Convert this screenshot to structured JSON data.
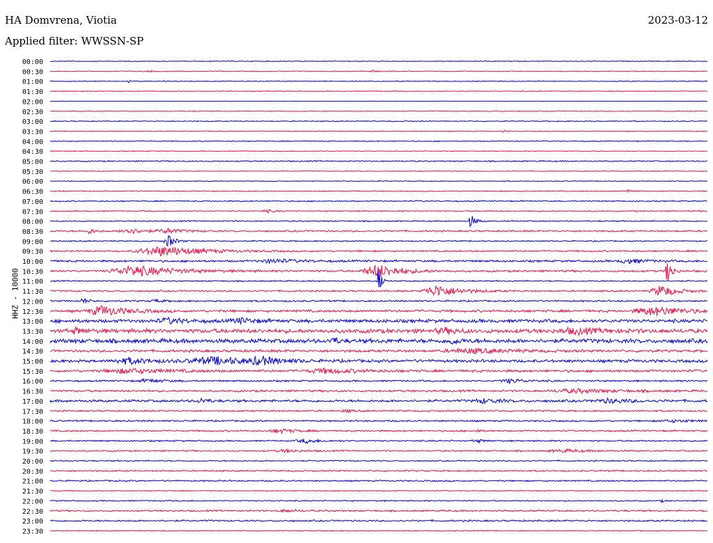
{
  "header": {
    "station": "HA Domvrena, Viotia",
    "date": "2023-03-12",
    "filter": "Applied filter: WWSSN-SP"
  },
  "chart_data": {
    "type": "line",
    "title": "HA Domvrena, Viotia",
    "ylabel": "HHZ - 10000",
    "colors": {
      "blue": "#0000dd",
      "red": "#ee1144"
    },
    "rows": [
      {
        "label": "00:00",
        "color": "blue",
        "noise": 1,
        "events": []
      },
      {
        "label": "00:30",
        "color": "red",
        "noise": 1,
        "events": [
          {
            "x": 0.15,
            "amp": 2,
            "w": 0.01
          },
          {
            "x": 0.49,
            "amp": 3,
            "w": 0.006
          }
        ]
      },
      {
        "label": "01:00",
        "color": "blue",
        "noise": 1,
        "events": [
          {
            "x": 0.12,
            "amp": 6,
            "w": 0.002
          }
        ]
      },
      {
        "label": "01:30",
        "color": "red",
        "noise": 1,
        "events": []
      },
      {
        "label": "02:00",
        "color": "blue",
        "noise": 0.5,
        "events": []
      },
      {
        "label": "02:30",
        "color": "red",
        "noise": 1,
        "events": []
      },
      {
        "label": "03:00",
        "color": "blue",
        "noise": 1.2,
        "events": []
      },
      {
        "label": "03:30",
        "color": "red",
        "noise": 1,
        "events": [
          {
            "x": 0.69,
            "amp": 3,
            "w": 0.003
          }
        ]
      },
      {
        "label": "04:00",
        "color": "blue",
        "noise": 1.2,
        "events": []
      },
      {
        "label": "04:30",
        "color": "red",
        "noise": 1,
        "events": []
      },
      {
        "label": "05:00",
        "color": "blue",
        "noise": 1.5,
        "events": []
      },
      {
        "label": "05:30",
        "color": "red",
        "noise": 1,
        "events": []
      },
      {
        "label": "06:00",
        "color": "blue",
        "noise": 1,
        "events": []
      },
      {
        "label": "06:30",
        "color": "red",
        "noise": 1.2,
        "events": [
          {
            "x": 0.88,
            "amp": 7,
            "w": 0.005
          }
        ]
      },
      {
        "label": "07:00",
        "color": "blue",
        "noise": 1.5,
        "events": []
      },
      {
        "label": "07:30",
        "color": "red",
        "noise": 1.5,
        "events": [
          {
            "x": 0.33,
            "amp": 4,
            "w": 0.01
          }
        ]
      },
      {
        "label": "08:00",
        "color": "blue",
        "noise": 1.5,
        "events": [
          {
            "x": 0.64,
            "amp": 18,
            "w": 0.006
          }
        ]
      },
      {
        "label": "08:30",
        "color": "red",
        "noise": 2,
        "events": [
          {
            "x": 0.06,
            "amp": 7,
            "w": 0.008
          },
          {
            "x": 0.12,
            "amp": 8,
            "w": 0.02
          },
          {
            "x": 0.18,
            "amp": 6,
            "w": 0.02
          }
        ]
      },
      {
        "label": "09:00",
        "color": "blue",
        "noise": 1.5,
        "events": [
          {
            "x": 0.18,
            "amp": 18,
            "w": 0.008
          }
        ]
      },
      {
        "label": "09:30",
        "color": "red",
        "noise": 2,
        "events": [
          {
            "x": 0.17,
            "amp": 14,
            "w": 0.05
          }
        ]
      },
      {
        "label": "10:00",
        "color": "blue",
        "noise": 2.5,
        "events": [
          {
            "x": 0.34,
            "amp": 5,
            "w": 0.03
          },
          {
            "x": 0.88,
            "amp": 6,
            "w": 0.02
          }
        ]
      },
      {
        "label": "10:30",
        "color": "red",
        "noise": 2.5,
        "events": [
          {
            "x": 0.13,
            "amp": 14,
            "w": 0.05
          },
          {
            "x": 0.5,
            "amp": 18,
            "w": 0.03
          },
          {
            "x": 0.94,
            "amp": 40,
            "w": 0.005
          }
        ]
      },
      {
        "label": "11:00",
        "color": "blue",
        "noise": 1.5,
        "events": [
          {
            "x": 0.5,
            "amp": 50,
            "w": 0.003
          }
        ]
      },
      {
        "label": "11:30",
        "color": "red",
        "noise": 2,
        "events": [
          {
            "x": 0.59,
            "amp": 16,
            "w": 0.03
          },
          {
            "x": 0.93,
            "amp": 16,
            "w": 0.02
          }
        ]
      },
      {
        "label": "12:00",
        "color": "blue",
        "noise": 2,
        "events": [
          {
            "x": 0.05,
            "amp": 8,
            "w": 0.006
          },
          {
            "x": 0.16,
            "amp": 4,
            "w": 0.01
          }
        ]
      },
      {
        "label": "12:30",
        "color": "red",
        "noise": 3,
        "events": [
          {
            "x": 0.08,
            "amp": 14,
            "w": 0.03
          },
          {
            "x": 0.92,
            "amp": 12,
            "w": 0.04
          }
        ]
      },
      {
        "label": "13:00",
        "color": "blue",
        "noise": 4,
        "events": [
          {
            "x": 0.18,
            "amp": 7,
            "w": 0.02
          },
          {
            "x": 0.29,
            "amp": 6,
            "w": 0.02
          }
        ]
      },
      {
        "label": "13:30",
        "color": "red",
        "noise": 5,
        "events": [
          {
            "x": 0.04,
            "amp": 7,
            "w": 0.01
          },
          {
            "x": 0.6,
            "amp": 6,
            "w": 0.02
          },
          {
            "x": 0.8,
            "amp": 7,
            "w": 0.03
          }
        ]
      },
      {
        "label": "14:00",
        "color": "blue",
        "noise": 5,
        "events": [
          {
            "x": 0.43,
            "amp": 10,
            "w": 0.006
          },
          {
            "x": 0.61,
            "amp": 8,
            "w": 0.01
          }
        ]
      },
      {
        "label": "14:30",
        "color": "red",
        "noise": 3,
        "events": [
          {
            "x": 0.64,
            "amp": 6,
            "w": 0.05
          }
        ]
      },
      {
        "label": "15:00",
        "color": "blue",
        "noise": 3.5,
        "events": [
          {
            "x": 0.12,
            "amp": 8,
            "w": 0.03
          },
          {
            "x": 0.25,
            "amp": 10,
            "w": 0.05
          },
          {
            "x": 0.32,
            "amp": 10,
            "w": 0.02
          }
        ]
      },
      {
        "label": "15:30",
        "color": "red",
        "noise": 3,
        "events": [
          {
            "x": 0.12,
            "amp": 6,
            "w": 0.05
          },
          {
            "x": 0.42,
            "amp": 6,
            "w": 0.04
          }
        ]
      },
      {
        "label": "16:00",
        "color": "blue",
        "noise": 2,
        "events": [
          {
            "x": 0.15,
            "amp": 5,
            "w": 0.02
          },
          {
            "x": 0.7,
            "amp": 6,
            "w": 0.02
          }
        ]
      },
      {
        "label": "16:30",
        "color": "red",
        "noise": 2.5,
        "events": [
          {
            "x": 0.8,
            "amp": 5,
            "w": 0.05
          }
        ]
      },
      {
        "label": "17:00",
        "color": "blue",
        "noise": 3,
        "events": [
          {
            "x": 0.23,
            "amp": 6,
            "w": 0.01
          },
          {
            "x": 0.66,
            "amp": 6,
            "w": 0.02
          },
          {
            "x": 0.85,
            "amp": 5,
            "w": 0.03
          }
        ]
      },
      {
        "label": "17:30",
        "color": "red",
        "noise": 2,
        "events": [
          {
            "x": 0.45,
            "amp": 4,
            "w": 0.01
          }
        ]
      },
      {
        "label": "18:00",
        "color": "blue",
        "noise": 2,
        "events": [
          {
            "x": 0.95,
            "amp": 3,
            "w": 0.03
          }
        ]
      },
      {
        "label": "18:30",
        "color": "red",
        "noise": 2,
        "events": [
          {
            "x": 0.35,
            "amp": 6,
            "w": 0.02
          },
          {
            "x": 0.65,
            "amp": 5,
            "w": 0.004
          }
        ]
      },
      {
        "label": "19:00",
        "color": "blue",
        "noise": 1.8,
        "events": [
          {
            "x": 0.39,
            "amp": 5,
            "w": 0.02
          },
          {
            "x": 0.65,
            "amp": 4,
            "w": 0.01
          }
        ]
      },
      {
        "label": "19:30",
        "color": "red",
        "noise": 1.8,
        "events": [
          {
            "x": 0.36,
            "amp": 4,
            "w": 0.02
          },
          {
            "x": 0.78,
            "amp": 4,
            "w": 0.03
          }
        ]
      },
      {
        "label": "20:00",
        "color": "blue",
        "noise": 1.5,
        "events": []
      },
      {
        "label": "20:30",
        "color": "red",
        "noise": 1.8,
        "events": []
      },
      {
        "label": "21:00",
        "color": "blue",
        "noise": 1.8,
        "events": []
      },
      {
        "label": "21:30",
        "color": "red",
        "noise": 1.2,
        "events": []
      },
      {
        "label": "22:00",
        "color": "blue",
        "noise": 1.5,
        "events": [
          {
            "x": 0.93,
            "amp": 3,
            "w": 0.004
          }
        ]
      },
      {
        "label": "22:30",
        "color": "red",
        "noise": 2,
        "events": [
          {
            "x": 0.36,
            "amp": 3,
            "w": 0.02
          }
        ]
      },
      {
        "label": "23:00",
        "color": "blue",
        "noise": 2,
        "events": []
      },
      {
        "label": "23:30",
        "color": "red",
        "noise": 1.2,
        "events": []
      }
    ]
  }
}
